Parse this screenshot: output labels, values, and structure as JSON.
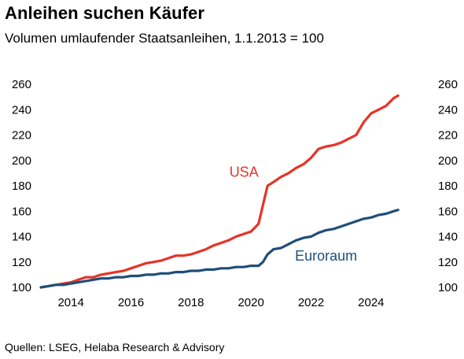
{
  "header": {
    "title": "Anleihen suchen Käufer",
    "subtitle": "Volumen umlaufender Staatsanleihen, 1.1.2013 = 100"
  },
  "footer": {
    "source": "Quellen: LSEG, Helaba Research & Advisory"
  },
  "chart_data": {
    "type": "line",
    "title": "Anleihen suchen Käufer",
    "subtitle": "Volumen umlaufender Staatsanleihen, 1.1.2013 = 100",
    "xlabel": "",
    "ylabel": "",
    "xlim": [
      2013.0,
      2025.0
    ],
    "ylim": [
      100,
      260
    ],
    "x_ticks": [
      2014,
      2016,
      2018,
      2020,
      2022,
      2024
    ],
    "y_ticks": [
      100,
      120,
      140,
      160,
      180,
      200,
      220,
      240,
      260
    ],
    "y_axis_both_sides": true,
    "grid": false,
    "legend": "none (inline series labels)",
    "series": [
      {
        "name": "USA",
        "color": "#e63329",
        "points": [
          [
            2013.0,
            100
          ],
          [
            2013.25,
            101
          ],
          [
            2013.5,
            102
          ],
          [
            2013.75,
            103
          ],
          [
            2014.0,
            104
          ],
          [
            2014.25,
            106
          ],
          [
            2014.5,
            108
          ],
          [
            2014.75,
            108
          ],
          [
            2015.0,
            110
          ],
          [
            2015.25,
            111
          ],
          [
            2015.5,
            112
          ],
          [
            2015.75,
            113
          ],
          [
            2016.0,
            115
          ],
          [
            2016.25,
            117
          ],
          [
            2016.5,
            119
          ],
          [
            2016.75,
            120
          ],
          [
            2017.0,
            121
          ],
          [
            2017.25,
            123
          ],
          [
            2017.5,
            125
          ],
          [
            2017.75,
            125
          ],
          [
            2018.0,
            126
          ],
          [
            2018.25,
            128
          ],
          [
            2018.5,
            130
          ],
          [
            2018.75,
            133
          ],
          [
            2019.0,
            135
          ],
          [
            2019.25,
            137
          ],
          [
            2019.5,
            140
          ],
          [
            2019.75,
            142
          ],
          [
            2020.0,
            144
          ],
          [
            2020.25,
            150
          ],
          [
            2020.4,
            165
          ],
          [
            2020.55,
            180
          ],
          [
            2020.75,
            183
          ],
          [
            2021.0,
            187
          ],
          [
            2021.25,
            190
          ],
          [
            2021.5,
            194
          ],
          [
            2021.75,
            197
          ],
          [
            2022.0,
            202
          ],
          [
            2022.25,
            209
          ],
          [
            2022.5,
            211
          ],
          [
            2022.75,
            212
          ],
          [
            2023.0,
            214
          ],
          [
            2023.25,
            217
          ],
          [
            2023.5,
            220
          ],
          [
            2023.75,
            230
          ],
          [
            2024.0,
            237
          ],
          [
            2024.25,
            240
          ],
          [
            2024.5,
            243
          ],
          [
            2024.75,
            249
          ],
          [
            2024.9,
            251
          ]
        ]
      },
      {
        "name": "Euroraum",
        "color": "#1f4e79",
        "points": [
          [
            2013.0,
            100
          ],
          [
            2013.25,
            101
          ],
          [
            2013.5,
            102
          ],
          [
            2013.75,
            102
          ],
          [
            2014.0,
            103
          ],
          [
            2014.25,
            104
          ],
          [
            2014.5,
            105
          ],
          [
            2014.75,
            106
          ],
          [
            2015.0,
            107
          ],
          [
            2015.25,
            107
          ],
          [
            2015.5,
            108
          ],
          [
            2015.75,
            108
          ],
          [
            2016.0,
            109
          ],
          [
            2016.25,
            109
          ],
          [
            2016.5,
            110
          ],
          [
            2016.75,
            110
          ],
          [
            2017.0,
            111
          ],
          [
            2017.25,
            111
          ],
          [
            2017.5,
            112
          ],
          [
            2017.75,
            112
          ],
          [
            2018.0,
            113
          ],
          [
            2018.25,
            113
          ],
          [
            2018.5,
            114
          ],
          [
            2018.75,
            114
          ],
          [
            2019.0,
            115
          ],
          [
            2019.25,
            115
          ],
          [
            2019.5,
            116
          ],
          [
            2019.75,
            116
          ],
          [
            2020.0,
            117
          ],
          [
            2020.25,
            117
          ],
          [
            2020.4,
            120
          ],
          [
            2020.55,
            126
          ],
          [
            2020.75,
            130
          ],
          [
            2021.0,
            131
          ],
          [
            2021.25,
            134
          ],
          [
            2021.5,
            137
          ],
          [
            2021.75,
            139
          ],
          [
            2022.0,
            140
          ],
          [
            2022.25,
            143
          ],
          [
            2022.5,
            145
          ],
          [
            2022.75,
            146
          ],
          [
            2023.0,
            148
          ],
          [
            2023.25,
            150
          ],
          [
            2023.5,
            152
          ],
          [
            2023.75,
            154
          ],
          [
            2024.0,
            155
          ],
          [
            2024.25,
            157
          ],
          [
            2024.5,
            158
          ],
          [
            2024.75,
            160
          ],
          [
            2024.9,
            161
          ]
        ]
      }
    ]
  }
}
